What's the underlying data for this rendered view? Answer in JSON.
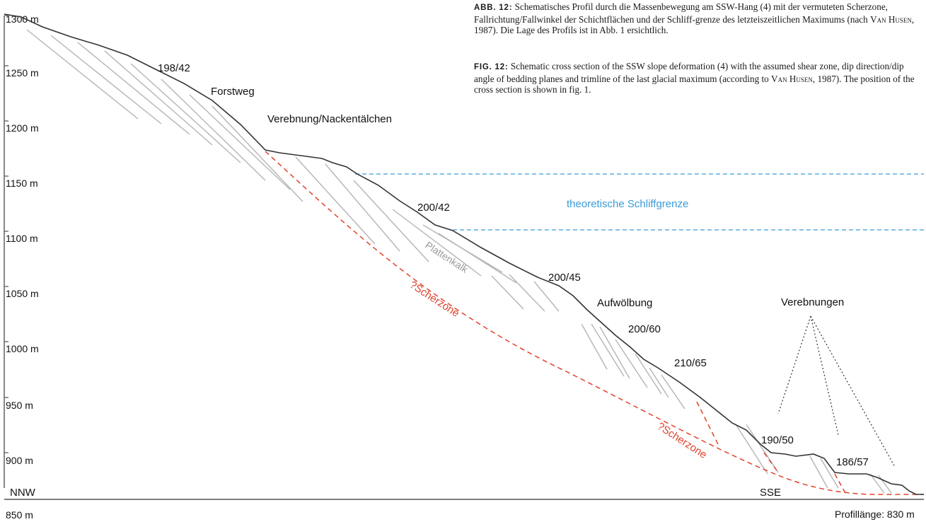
{
  "caption_de": {
    "tag": "ABB. 12:",
    "text_before": "Schematisches Profil durch die Massenbewegung am SSW-Hang (4) mit der vermuteten Scherzone, Fallrichtung/Fallwinkel der Schichtflächen und der Schliff-grenze des letzteiszeitlichen Maximums (nach",
    "author": "Van Husen",
    "text_after": ", 1987). Die Lage des Profils ist in Abb. 1 ersichtlich."
  },
  "caption_en": {
    "tag": "FIG. 12:",
    "text_before": "Schematic cross section of the SSW slope deformation (4) with the assumed shear zone, dip direction/dip angle of bedding planes and trimline of the last glacial maximum (according to",
    "author": "Van Husen",
    "text_after": ", 1987). The position of the cross section is shown in fig. 1."
  },
  "axis": {
    "ticks": [
      "1300 m",
      "1250 m",
      "1200 m",
      "1150 m",
      "1100 m",
      "1050 m",
      "1000 m",
      "950 m",
      "900 m",
      "850 m"
    ],
    "left_end": "NNW",
    "right_end": "SSE",
    "length_label": "Profillänge: 830 m"
  },
  "labels": {
    "dip_198_42": "198/42",
    "forstweg": "Forstweg",
    "verebnung": "Verebnung/Nackentälchen",
    "dip_200_42": "200/42",
    "trimline": "theoretische Schliffgrenze",
    "plattenkalk": "Plattenkalk",
    "scherzone_upper": "?Scherzone",
    "dip_200_45": "200/45",
    "aufwoelbung": "Aufwölbung",
    "dip_200_60": "200/60",
    "dip_210_65": "210/65",
    "verebnungen": "Verebnungen",
    "scherzone_lower": "?Scherzone",
    "dip_190_50": "190/50",
    "dip_186_57": "186/57"
  },
  "colors": {
    "terrain": "#333333",
    "bedding": "#b4b4b4",
    "shear_zone": "#e0422b",
    "trimline": "#3a9bd9",
    "axis": "#555555"
  }
}
